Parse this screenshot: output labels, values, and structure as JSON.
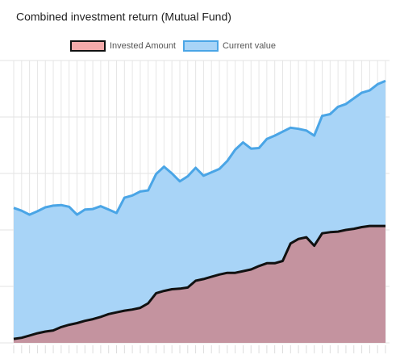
{
  "chart_data": {
    "type": "area",
    "title": "Combined investment return (Mutual Fund)",
    "series": [
      {
        "name": "Current value",
        "color": "#4aa5e6",
        "fill": "#a8d4f7",
        "values": [
          2.39,
          2.34,
          2.27,
          2.33,
          2.4,
          2.43,
          2.44,
          2.41,
          2.27,
          2.36,
          2.37,
          2.42,
          2.36,
          2.3,
          2.57,
          2.61,
          2.68,
          2.7,
          2.99,
          3.12,
          3.0,
          2.86,
          2.95,
          3.1,
          2.96,
          3.02,
          3.08,
          3.22,
          3.42,
          3.55,
          3.44,
          3.45,
          3.61,
          3.67,
          3.74,
          3.81,
          3.79,
          3.76,
          3.67,
          4.02,
          4.05,
          4.18,
          4.23,
          4.33,
          4.43,
          4.47,
          4.58,
          4.64
        ]
      },
      {
        "name": "Invested Amount",
        "color": "#111111",
        "fill": "#c4939f",
        "swatch": "#f4aaaa",
        "values": [
          0.07,
          0.09,
          0.13,
          0.17,
          0.2,
          0.22,
          0.28,
          0.32,
          0.35,
          0.39,
          0.42,
          0.46,
          0.51,
          0.54,
          0.57,
          0.59,
          0.62,
          0.7,
          0.88,
          0.92,
          0.95,
          0.96,
          0.98,
          1.1,
          1.13,
          1.17,
          1.21,
          1.24,
          1.24,
          1.27,
          1.3,
          1.36,
          1.41,
          1.41,
          1.45,
          1.76,
          1.84,
          1.87,
          1.72,
          1.94,
          1.96,
          1.97,
          2.0,
          2.02,
          2.05,
          2.07,
          2.07,
          2.07
        ]
      }
    ],
    "ylim": [
      0,
      5
    ],
    "yticks": [
      0,
      1,
      2,
      3,
      4,
      5
    ],
    "grid": true,
    "legend": "top"
  }
}
